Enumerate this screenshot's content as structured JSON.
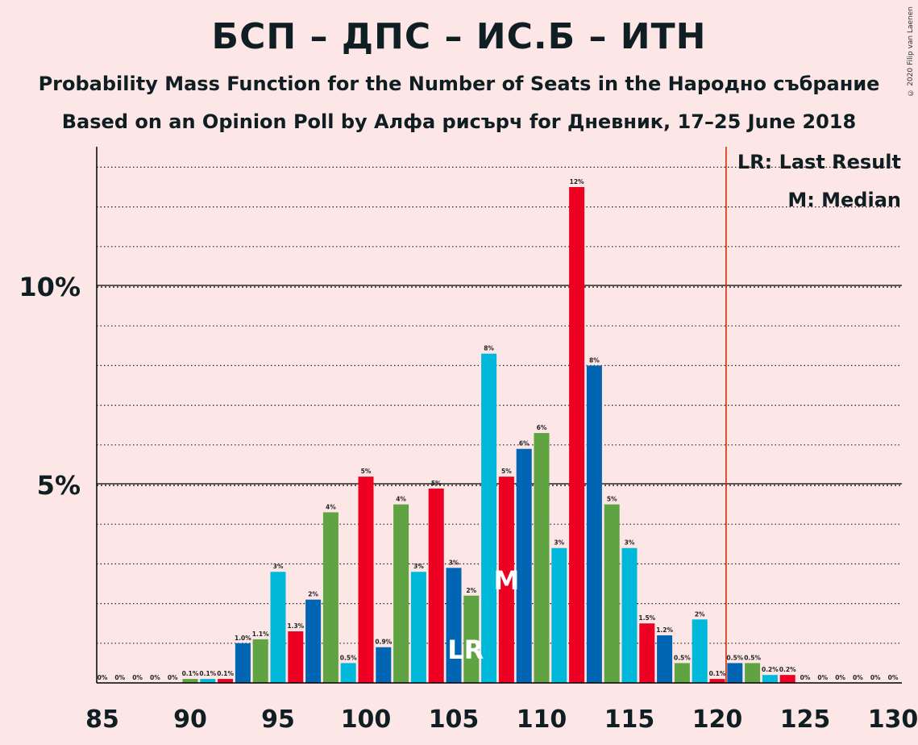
{
  "title": "БСП – ДПС – ИС.Б – ИТН",
  "subtitle": "Probability Mass Function for the Number of Seats in the Народно събрание",
  "subtitle2": "Based on an Opinion Poll by Алфа рисърч for Дневник, 17–25 June 2018",
  "copyright": "© 2020 Filip van Laenen",
  "colors": {
    "background": "#fde6e6",
    "red": "#ed0022",
    "blue": "#0066b3",
    "green": "#5fa343",
    "cyan": "#00b8d9",
    "last_result_line": "#cc2200"
  },
  "chart_data": {
    "type": "bar",
    "x": [
      85,
      86,
      87,
      88,
      89,
      90,
      91,
      92,
      93,
      94,
      95,
      96,
      97,
      98,
      99,
      100,
      101,
      102,
      103,
      104,
      105,
      106,
      107,
      108,
      109,
      110,
      111,
      112,
      113,
      114,
      115,
      116,
      117,
      118,
      119,
      120,
      121,
      122,
      123,
      124,
      125,
      126,
      127,
      128,
      129,
      130
    ],
    "values": [
      0,
      0,
      0,
      0,
      0,
      0.1,
      0.1,
      0.1,
      1.0,
      1.1,
      2.8,
      1.3,
      2.1,
      4.3,
      0.5,
      5.2,
      0.9,
      4.5,
      2.8,
      4.9,
      2.9,
      2.2,
      8.3,
      5.2,
      5.9,
      6.3,
      3.4,
      12.5,
      8.0,
      4.5,
      3.4,
      1.5,
      1.2,
      0.5,
      1.6,
      0.1,
      0.5,
      0.5,
      0.2,
      0.2,
      0,
      0,
      0,
      0,
      0,
      0
    ],
    "colors": [
      "cyan",
      "red",
      "blue",
      "green",
      "cyan",
      "green",
      "cyan",
      "red",
      "blue",
      "green",
      "cyan",
      "red",
      "blue",
      "green",
      "cyan",
      "red",
      "blue",
      "green",
      "cyan",
      "red",
      "blue",
      "green",
      "cyan",
      "red",
      "blue",
      "green",
      "cyan",
      "red",
      "blue",
      "green",
      "cyan",
      "red",
      "blue",
      "green",
      "cyan",
      "red",
      "blue",
      "green",
      "cyan",
      "red",
      "blue",
      "green",
      "cyan",
      "red",
      "blue",
      "green"
    ],
    "labels": [
      "0%",
      "0%",
      "0%",
      "0%",
      "0%",
      "0.1%",
      "0.1%",
      "0.1%",
      "1.0%",
      "1.1%",
      "3%",
      "1.3%",
      "2%",
      "4%",
      "0.5%",
      "5%",
      "0.9%",
      "4%",
      "3%",
      "5%",
      "3%",
      "2%",
      "8%",
      "5%",
      "6%",
      "6%",
      "3%",
      "12%",
      "8%",
      "5%",
      "3%",
      "1.5%",
      "1.2%",
      "0.5%",
      "2%",
      "0.1%",
      "0.5%",
      "0.5%",
      "0.2%",
      "0.2%",
      "0%",
      "0%",
      "0%",
      "0%",
      "0%",
      "0%"
    ],
    "xticks": [
      85,
      90,
      95,
      100,
      105,
      110,
      115,
      120,
      125,
      130
    ],
    "xtick_labels": [
      "85",
      "90",
      "95",
      "100",
      "105",
      "110",
      "115",
      "120",
      "125",
      "130"
    ],
    "yticks": [
      5,
      10
    ],
    "ytick_labels": [
      "5%",
      "10%"
    ],
    "ylim": [
      0,
      13.5
    ],
    "minor_grid_step": 1,
    "last_result": 106,
    "last_result_label": "LR",
    "median": 108,
    "median_label": "M",
    "majority_line": 120.5,
    "legend": [
      "LR: Last Result",
      "M: Median"
    ],
    "legend_position": "top-right"
  }
}
